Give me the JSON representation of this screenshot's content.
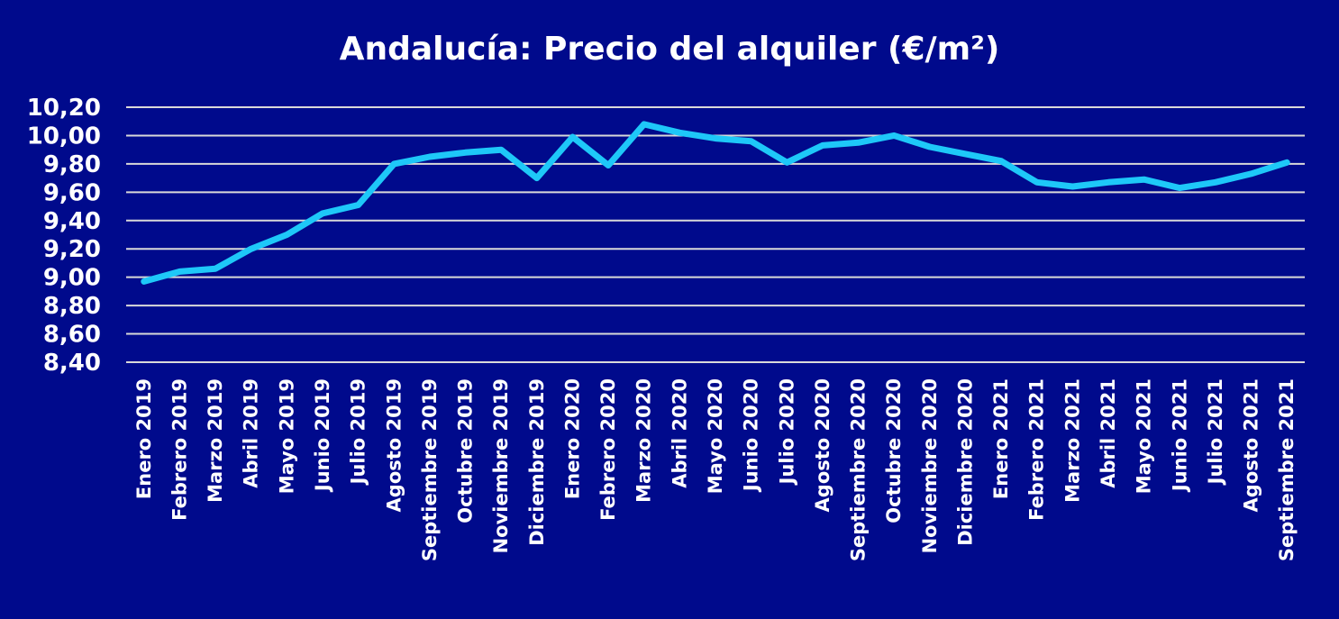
{
  "chart_data": {
    "type": "line",
    "title": "Andalucía: Precio del alquiler (€/m²)",
    "xlabel": "",
    "ylabel": "",
    "ylim": [
      8.4,
      10.2
    ],
    "yticks": [
      "8,40",
      "8,60",
      "8,80",
      "9,00",
      "9,20",
      "9,40",
      "9,60",
      "9,80",
      "10,00",
      "10,20"
    ],
    "grid": true,
    "legend": "none",
    "categories": [
      "Enero 2019",
      "Febrero 2019",
      "Marzo 2019",
      "Abril 2019",
      "Mayo 2019",
      "Junio 2019",
      "Julio 2019",
      "Agosto 2019",
      "Septiembre 2019",
      "Octubre 2019",
      "Noviembre 2019",
      "Diciembre 2019",
      "Enero 2020",
      "Febrero 2020",
      "Marzo 2020",
      "Abril 2020",
      "Mayo 2020",
      "Junio 2020",
      "Julio 2020",
      "Agosto 2020",
      "Septiembre 2020",
      "Octubre 2020",
      "Noviembre 2020",
      "Diciembre 2020",
      "Enero 2021",
      "Febrero 2021",
      "Marzo 2021",
      "Abril 2021",
      "Mayo 2021",
      "Junio 2021",
      "Julio 2021",
      "Agosto 2021",
      "Septiembre 2021"
    ],
    "series": [
      {
        "values": [
          8.97,
          9.04,
          9.06,
          9.2,
          9.3,
          9.45,
          9.51,
          9.8,
          9.85,
          9.88,
          9.9,
          9.7,
          9.99,
          9.79,
          10.08,
          10.02,
          9.98,
          9.96,
          9.81,
          9.93,
          9.95,
          10.0,
          9.92,
          9.87,
          9.82,
          9.67,
          9.64,
          9.67,
          9.69,
          9.63,
          9.67,
          9.73,
          9.81
        ],
        "color": "#1ec8f8"
      }
    ],
    "colors": {
      "background": "#000a8c",
      "grid": "#d9d9d9",
      "text": "#ffffff"
    }
  }
}
